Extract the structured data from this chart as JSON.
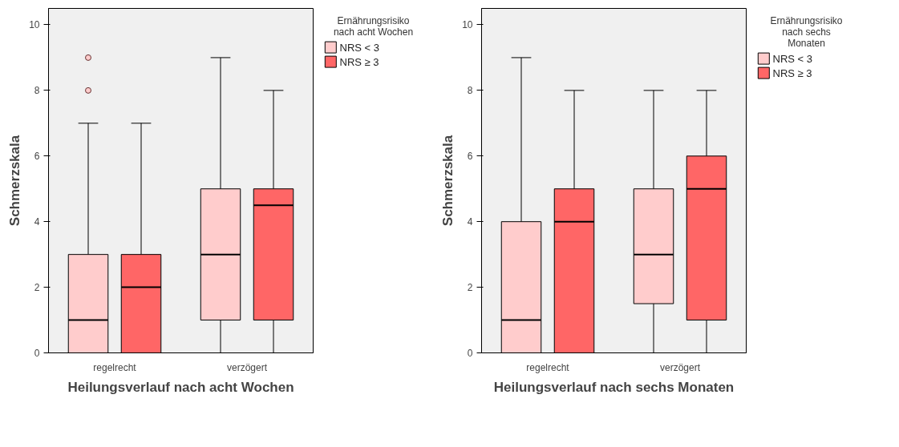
{
  "chart_data": [
    {
      "type": "box",
      "categories": [
        "regelrecht",
        "verzögert"
      ],
      "xlabel": "Heilungsverlauf nach acht Wochen",
      "ylabel": "Schmerzskala",
      "legend_title": "Ernährungsrisiko nach acht Wochen",
      "legend": "top right",
      "grid": false,
      "ylim": [
        0,
        10.5
      ],
      "yticks": [
        0,
        2,
        4,
        6,
        8,
        10
      ],
      "series": [
        {
          "name": "NRS < 3",
          "color": "#ffcccc",
          "boxes": [
            {
              "low": 0,
              "q1": 0,
              "median": 1,
              "q3": 3,
              "high": 7,
              "outliers": [
                8,
                9
              ]
            },
            {
              "low": 0,
              "q1": 1,
              "median": 3,
              "q3": 5,
              "high": 9
            }
          ]
        },
        {
          "name": "NRS ≥ 3",
          "color": "#ff6666",
          "boxes": [
            {
              "low": 0,
              "q1": 0,
              "median": 2,
              "q3": 3,
              "high": 7
            },
            {
              "low": 0,
              "q1": 1,
              "median": 4.5,
              "q3": 5,
              "high": 8
            }
          ]
        }
      ]
    },
    {
      "type": "box",
      "categories": [
        "regelrecht",
        "verzögert"
      ],
      "xlabel": "Heilungsverlauf nach sechs Monaten",
      "ylabel": "Schmerzskala",
      "legend_title": "Ernährungsrisiko nach sechs Monaten",
      "legend": "top right",
      "grid": false,
      "ylim": [
        0,
        10.5
      ],
      "yticks": [
        0,
        2,
        4,
        6,
        8,
        10
      ],
      "series": [
        {
          "name": "NRS < 3",
          "color": "#ffcccc",
          "boxes": [
            {
              "low": 0,
              "q1": 0,
              "median": 1,
              "q3": 4,
              "high": 9
            },
            {
              "low": 0,
              "q1": 1.5,
              "median": 3,
              "q3": 5,
              "high": 8
            }
          ]
        },
        {
          "name": "NRS ≥ 3",
          "color": "#ff6666",
          "boxes": [
            {
              "low": 0,
              "q1": 0,
              "median": 4,
              "q3": 5,
              "high": 8
            },
            {
              "low": 0,
              "q1": 1,
              "median": 5,
              "q3": 6,
              "high": 8
            }
          ]
        }
      ]
    }
  ]
}
